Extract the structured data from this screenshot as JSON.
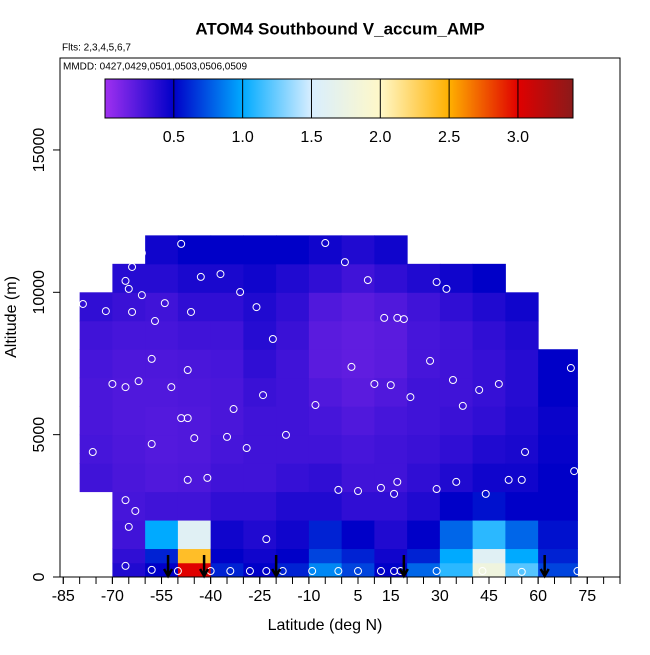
{
  "chart_data": {
    "type": "heatmap",
    "title": "ATOM4 Southbound V_accum_AMP",
    "subtitle": "Flts: 2,3,4,5,6,7",
    "annotation": "MMDD: 0427,0429,0501,0503,0506,0509",
    "x_label": "Latitude (deg N)",
    "y_label": "Altitude (m)",
    "xlim": [
      -86,
      85
    ],
    "ylim": [
      0,
      18230
    ],
    "xticks": [
      -85,
      -70,
      -55,
      -40,
      -25,
      -10,
      5,
      15,
      30,
      45,
      60,
      75
    ],
    "xminorticks": [
      -85,
      -80,
      -75,
      -70,
      -65,
      -60,
      -55,
      -50,
      -45,
      -40,
      -35,
      -30,
      -25,
      -20,
      -15,
      -10,
      -5,
      0,
      5,
      10,
      15,
      20,
      25,
      30,
      35,
      40,
      45,
      50,
      55,
      60,
      65,
      70,
      75,
      80,
      85
    ],
    "yticks": [
      0,
      5000,
      10000,
      15000
    ],
    "lat_edges": [
      -80,
      -70,
      -60,
      -50,
      -40,
      -30,
      -20,
      -10,
      0,
      10,
      20,
      30,
      40,
      50,
      60,
      72
    ],
    "alt_edges": [
      0,
      500,
      1000,
      2000,
      3000,
      4000,
      5000,
      6000,
      7000,
      8000,
      9000,
      10000,
      11000,
      12000
    ],
    "cells": [
      [
        null,
        null,
        null,
        null,
        0.3,
        0.28,
        0.27,
        0.27,
        0.28,
        0.3,
        0.35,
        null,
        null
      ],
      [
        0.4,
        0.35,
        0.3,
        0.28,
        0.27,
        0.26,
        0.25,
        0.25,
        0.26,
        0.28,
        0.32,
        0.38,
        null
      ],
      [
        0.5,
        0.6,
        1.0,
        0.3,
        0.25,
        0.24,
        0.24,
        0.25,
        0.26,
        0.28,
        0.3,
        0.38,
        0.45
      ],
      [
        3.0,
        2.4,
        1.6,
        0.3,
        0.26,
        0.25,
        0.25,
        0.26,
        0.27,
        0.3,
        0.35,
        0.42,
        0.5
      ],
      [
        0.6,
        0.5,
        0.45,
        0.35,
        0.3,
        0.28,
        0.27,
        0.27,
        0.28,
        0.3,
        0.35,
        0.42,
        0.5
      ],
      [
        0.5,
        0.45,
        0.4,
        0.35,
        0.3,
        0.3,
        0.3,
        0.32,
        0.35,
        0.38,
        0.4,
        0.45,
        0.5
      ],
      [
        0.6,
        0.5,
        0.45,
        0.4,
        0.33,
        0.3,
        0.3,
        0.3,
        0.3,
        0.32,
        0.35,
        0.4,
        0.5
      ],
      [
        0.9,
        0.7,
        0.6,
        0.4,
        0.35,
        0.3,
        0.28,
        0.25,
        0.22,
        0.22,
        0.25,
        0.35,
        0.45
      ],
      [
        0.7,
        0.6,
        0.5,
        0.35,
        0.3,
        0.28,
        0.25,
        0.22,
        0.2,
        0.2,
        0.22,
        0.3,
        0.4
      ],
      [
        0.5,
        0.45,
        0.4,
        0.35,
        0.3,
        0.3,
        0.28,
        0.25,
        0.22,
        0.22,
        0.25,
        0.35,
        0.45
      ],
      [
        0.8,
        0.6,
        0.5,
        0.4,
        0.35,
        0.32,
        0.3,
        0.3,
        0.28,
        0.28,
        0.3,
        0.4,
        null
      ],
      [
        1.1,
        1.0,
        0.8,
        0.5,
        0.4,
        0.35,
        0.32,
        0.3,
        0.3,
        0.3,
        0.35,
        0.45,
        null
      ],
      [
        1.8,
        1.6,
        1.1,
        0.55,
        0.45,
        0.4,
        0.35,
        0.33,
        0.33,
        0.35,
        0.4,
        0.5,
        null
      ],
      [
        1.2,
        1.0,
        0.8,
        0.5,
        0.45,
        0.42,
        0.4,
        0.38,
        0.38,
        0.4,
        0.45,
        null,
        null
      ],
      [
        0.7,
        0.6,
        0.55,
        0.5,
        0.5,
        0.48,
        0.47,
        0.5,
        0.5,
        null,
        null,
        null,
        null
      ]
    ],
    "colorbar_lim": [
      0,
      3.4
    ],
    "colorbar_ticks": [
      {
        "value": 0.5,
        "label": "0.5"
      },
      {
        "value": 1,
        "label": "1.0"
      },
      {
        "value": 1.5,
        "label": "1.5"
      },
      {
        "value": 2,
        "label": "2.0"
      },
      {
        "value": 2.5,
        "label": "2.5"
      },
      {
        "value": 3,
        "label": "3.0"
      }
    ],
    "colormap": [
      {
        "value": 0,
        "color": "#a030f0"
      },
      {
        "value": 0.5,
        "color": "#0000c8"
      },
      {
        "value": 1,
        "color": "#00aaff"
      },
      {
        "value": 1.5,
        "color": "#d8eeff"
      },
      {
        "value": 2,
        "color": "#fff8c8"
      },
      {
        "value": 2.5,
        "color": "#ffb000"
      },
      {
        "value": 3,
        "color": "#e00000"
      },
      {
        "value": 3.4,
        "color": "#8b1a1a"
      }
    ],
    "points": {
      "x": [
        -49,
        -61,
        -64,
        -66,
        -65,
        -61,
        -79,
        -72,
        -64,
        -54,
        -57,
        -46,
        -43,
        -37,
        -31,
        -26,
        -5,
        1,
        8,
        23,
        29,
        32,
        13,
        17,
        19,
        -21,
        3,
        27,
        34,
        42,
        48,
        70,
        -58,
        -70,
        -66,
        -62,
        -52,
        -47,
        -24,
        -8,
        10,
        15,
        21,
        37,
        -49,
        -47,
        -33,
        -58,
        -45,
        -35,
        -29,
        -17,
        -76,
        56,
        71,
        -47,
        -41,
        17,
        12,
        35,
        51,
        55,
        -1,
        5,
        16,
        29,
        44,
        -66,
        -63,
        -65,
        -23,
        -66,
        -58,
        -50,
        -40,
        -34,
        -28,
        -23,
        -18,
        -9,
        -1,
        5,
        12,
        16,
        18,
        29,
        43,
        55,
        72
      ],
      "y": [
        11700,
        11380,
        10890,
        10400,
        10120,
        9900,
        9590,
        9340,
        9310,
        9620,
        8990,
        9310,
        10540,
        10640,
        10010,
        9480,
        11730,
        11060,
        10430,
        11770,
        10360,
        10120,
        9100,
        9100,
        9060,
        8360,
        7380,
        7590,
        6920,
        6570,
        6780,
        7340,
        7660,
        6780,
        6670,
        6880,
        6670,
        7270,
        6390,
        6040,
        6780,
        6740,
        6320,
        6010,
        5580,
        5580,
        5900,
        4670,
        4880,
        4920,
        4530,
        4990,
        4390,
        4390,
        3720,
        3410,
        3480,
        3340,
        3130,
        3340,
        3410,
        3410,
        3060,
        3020,
        2920,
        3090,
        2920,
        2700,
        2320,
        1760,
        1330,
        390,
        250,
        210,
        210,
        210,
        210,
        210,
        210,
        210,
        210,
        210,
        210,
        210,
        210,
        210,
        210,
        180,
        210
      ]
    },
    "arrows_lat": [
      -53,
      -42,
      -20,
      19,
      62
    ]
  }
}
